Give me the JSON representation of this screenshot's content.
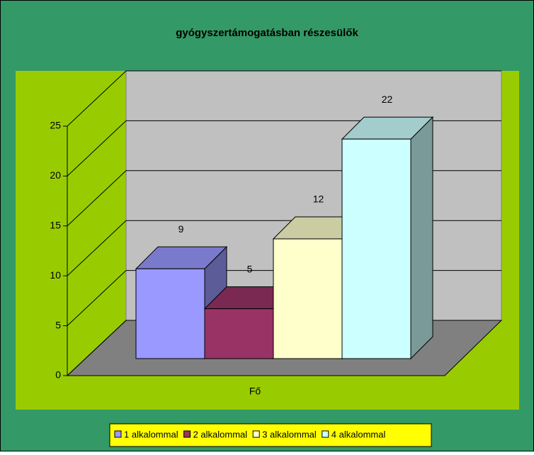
{
  "chart_data": {
    "type": "bar3d",
    "title": "gyógyszertámogatásban részesülők",
    "categories": [
      "Fő"
    ],
    "series": [
      {
        "name": "1 alkalommal",
        "color": "#9999ff",
        "values": [
          9
        ]
      },
      {
        "name": "2 alkalommal",
        "color": "#993366",
        "values": [
          5
        ]
      },
      {
        "name": "3 alkalommal",
        "color": "#ffffcc",
        "values": [
          12
        ]
      },
      {
        "name": "4 alkalommal",
        "color": "#ccffff",
        "values": [
          22
        ]
      }
    ],
    "ylim": [
      0,
      25
    ],
    "yticks": [
      0,
      5,
      10,
      15,
      20,
      25
    ],
    "grid": true,
    "legend": "bottom"
  }
}
